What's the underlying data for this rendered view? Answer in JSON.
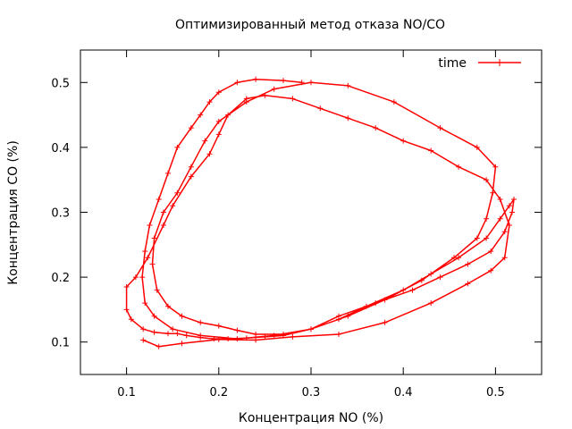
{
  "chart_data": {
    "type": "line",
    "title": "Оптимизированный метод отказа NO/CO",
    "xlabel": "Концентрация NO (%)",
    "ylabel": "Концентрация CO (%)",
    "xlim": [
      0.05,
      0.55
    ],
    "ylim": [
      0.05,
      0.55
    ],
    "xticks": [
      "0.1",
      "0.2",
      "0.3",
      "0.4",
      "0.5"
    ],
    "yticks": [
      "0.1",
      "0.2",
      "0.3",
      "0.4",
      "0.5"
    ],
    "grid": false,
    "legend_position": "top-right",
    "series": [
      {
        "name": "time",
        "color": "#ff0000",
        "marker": "plus",
        "x": [
          0.118,
          0.135,
          0.16,
          0.2,
          0.24,
          0.28,
          0.33,
          0.38,
          0.43,
          0.47,
          0.495,
          0.51,
          0.515,
          0.505,
          0.49,
          0.46,
          0.43,
          0.4,
          0.37,
          0.34,
          0.31,
          0.28,
          0.25,
          0.23,
          0.21,
          0.2,
          0.19,
          0.17,
          0.15,
          0.14,
          0.123,
          0.11,
          0.1,
          0.1,
          0.105,
          0.118,
          0.13,
          0.145,
          0.155,
          0.165,
          0.18,
          0.195,
          0.21,
          0.23,
          0.25,
          0.27,
          0.3,
          0.33,
          0.36,
          0.4,
          0.43,
          0.46,
          0.49,
          0.505,
          0.515,
          0.52,
          0.518,
          0.51,
          0.495,
          0.47,
          0.44,
          0.41,
          0.37,
          0.33,
          0.3,
          0.27,
          0.24,
          0.22,
          0.2,
          0.18,
          0.16,
          0.145,
          0.133,
          0.128,
          0.13,
          0.14,
          0.155,
          0.17,
          0.185,
          0.2,
          0.23,
          0.26,
          0.3,
          0.34,
          0.39,
          0.44,
          0.48,
          0.5,
          0.497,
          0.49,
          0.48,
          0.455,
          0.42,
          0.38,
          0.34,
          0.3,
          0.26,
          0.22,
          0.18,
          0.15,
          0.13,
          0.12,
          0.117,
          0.12,
          0.125,
          0.135,
          0.145,
          0.155,
          0.17,
          0.18,
          0.19,
          0.2,
          0.22,
          0.24,
          0.27,
          0.29
        ],
        "y": [
          0.103,
          0.093,
          0.098,
          0.104,
          0.103,
          0.108,
          0.112,
          0.13,
          0.16,
          0.19,
          0.21,
          0.23,
          0.28,
          0.32,
          0.35,
          0.37,
          0.395,
          0.41,
          0.43,
          0.445,
          0.46,
          0.475,
          0.48,
          0.475,
          0.45,
          0.42,
          0.39,
          0.355,
          0.31,
          0.28,
          0.23,
          0.2,
          0.185,
          0.15,
          0.135,
          0.12,
          0.115,
          0.113,
          0.113,
          0.11,
          0.107,
          0.105,
          0.105,
          0.106,
          0.108,
          0.11,
          0.12,
          0.135,
          0.155,
          0.18,
          0.205,
          0.23,
          0.26,
          0.29,
          0.31,
          0.32,
          0.3,
          0.27,
          0.24,
          0.22,
          0.2,
          0.18,
          0.16,
          0.14,
          0.12,
          0.112,
          0.112,
          0.118,
          0.125,
          0.13,
          0.14,
          0.155,
          0.18,
          0.22,
          0.26,
          0.3,
          0.33,
          0.37,
          0.41,
          0.44,
          0.47,
          0.49,
          0.5,
          0.495,
          0.47,
          0.43,
          0.4,
          0.37,
          0.33,
          0.29,
          0.26,
          0.23,
          0.195,
          0.165,
          0.14,
          0.12,
          0.11,
          0.105,
          0.11,
          0.12,
          0.14,
          0.16,
          0.2,
          0.24,
          0.28,
          0.32,
          0.36,
          0.4,
          0.43,
          0.45,
          0.47,
          0.485,
          0.5,
          0.505,
          0.503,
          0.5
        ]
      }
    ]
  }
}
